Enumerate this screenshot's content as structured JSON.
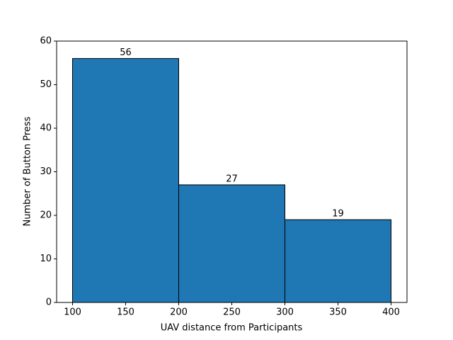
{
  "chart_data": {
    "type": "histogram",
    "xlabel": "UAV distance from Participants",
    "ylabel": "Number of Button Press",
    "bins": [
      100,
      200,
      300,
      400
    ],
    "values": [
      56,
      27,
      19
    ],
    "color": "#1f77b4",
    "edgecolor": "#000000",
    "xlim": [
      85,
      415
    ],
    "xticks": [
      100,
      150,
      200,
      250,
      300,
      350,
      400
    ],
    "ylim": [
      0,
      60
    ],
    "yticks": [
      0,
      10,
      20,
      30,
      40,
      50,
      60
    ],
    "grid": false,
    "data_labels": true
  }
}
